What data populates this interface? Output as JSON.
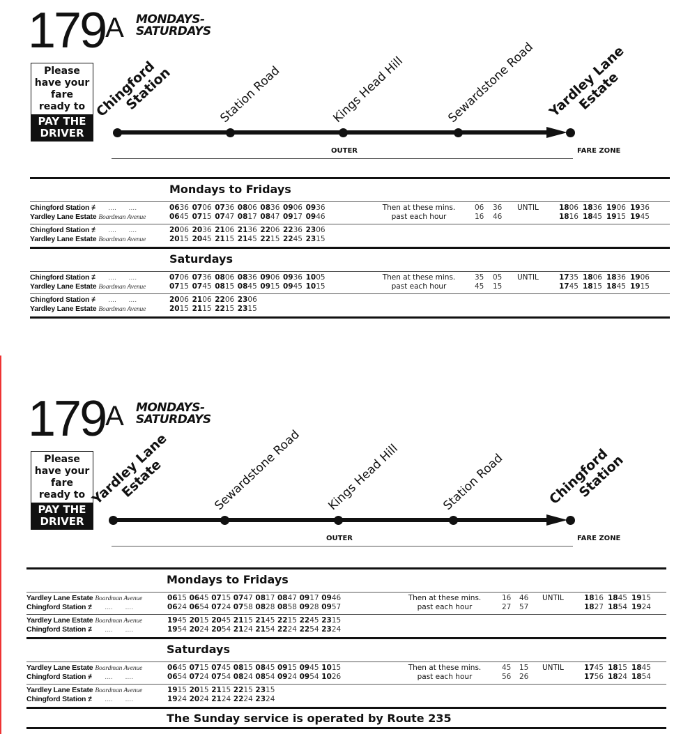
{
  "panels": [
    {
      "route_number": "179",
      "route_suffix": "A",
      "days_line1": "MONDAYS-",
      "days_line2": "SATURDAYS",
      "fare_box": {
        "line1": "Please",
        "line2": "have your",
        "line3": "fare",
        "line4": "ready to",
        "pay1": "PAY THE",
        "pay2": "DRIVER"
      },
      "stops": [
        {
          "line1": "Chingford",
          "line2": "Station",
          "terminus": true
        },
        {
          "line1": "Station Road"
        },
        {
          "line1": "Kings Head Hill"
        },
        {
          "line1": "Sewardstone Road"
        },
        {
          "line1": "Yardley Lane",
          "line2": "Estate",
          "terminus": true
        }
      ],
      "zone_label": "OUTER",
      "fare_zone_label": "FARE ZONE",
      "tables": [
        {
          "heading": "Mondays to Fridays",
          "blocks": [
            {
              "rows": [
                {
                  "stop": "Chingford Station",
                  "rail": true,
                  "times": [
                    "0636",
                    "0706",
                    "0736",
                    "0806",
                    "0836",
                    "0906",
                    "0936"
                  ]
                },
                {
                  "stop": "Yardley Lane Estate",
                  "note": "Boardman Avenue",
                  "times": [
                    "0645",
                    "0715",
                    "0747",
                    "0817",
                    "0847",
                    "0917",
                    "0946"
                  ]
                }
              ],
              "then": {
                "line1": "Then at these mins.",
                "line2": "past each hour",
                "mins": [
                  [
                    "06",
                    "36"
                  ],
                  [
                    "16",
                    "46"
                  ]
                ],
                "until": "UNTIL",
                "tail": [
                  [
                    "1806",
                    "1836",
                    "1906",
                    "1936"
                  ],
                  [
                    "1816",
                    "1845",
                    "1915",
                    "1945"
                  ]
                ]
              }
            },
            {
              "rows": [
                {
                  "stop": "Chingford Station",
                  "rail": true,
                  "times": [
                    "2006",
                    "2036",
                    "2106",
                    "2136",
                    "2206",
                    "2236",
                    "2306"
                  ]
                },
                {
                  "stop": "Yardley Lane Estate",
                  "note": "Boardman Avenue",
                  "times": [
                    "2015",
                    "2045",
                    "2115",
                    "2145",
                    "2215",
                    "2245",
                    "2315"
                  ]
                }
              ]
            }
          ]
        },
        {
          "heading": "Saturdays",
          "blocks": [
            {
              "rows": [
                {
                  "stop": "Chingford Station",
                  "rail": true,
                  "times": [
                    "0706",
                    "0736",
                    "0806",
                    "0836",
                    "0906",
                    "0936",
                    "1005"
                  ]
                },
                {
                  "stop": "Yardley Lane Estate",
                  "note": "Boardman Avenue",
                  "times": [
                    "0715",
                    "0745",
                    "0815",
                    "0845",
                    "0915",
                    "0945",
                    "1015"
                  ]
                }
              ],
              "then": {
                "line1": "Then at these mins.",
                "line2": "past each hour",
                "mins": [
                  [
                    "35",
                    "05"
                  ],
                  [
                    "45",
                    "15"
                  ]
                ],
                "until": "UNTIL",
                "tail": [
                  [
                    "1735",
                    "1806",
                    "1836",
                    "1906"
                  ],
                  [
                    "1745",
                    "1815",
                    "1845",
                    "1915"
                  ]
                ]
              }
            },
            {
              "rows": [
                {
                  "stop": "Chingford Station",
                  "rail": true,
                  "times": [
                    "2006",
                    "2106",
                    "2206",
                    "2306"
                  ]
                },
                {
                  "stop": "Yardley Lane Estate",
                  "note": "Boardman Avenue",
                  "times": [
                    "2015",
                    "2115",
                    "2215",
                    "2315"
                  ]
                }
              ]
            }
          ]
        }
      ]
    },
    {
      "route_number": "179",
      "route_suffix": "A",
      "days_line1": "MONDAYS-",
      "days_line2": "SATURDAYS",
      "fare_box": {
        "line1": "Please",
        "line2": "have your",
        "line3": "fare",
        "line4": "ready to",
        "pay1": "PAY THE",
        "pay2": "DRIVER"
      },
      "stops": [
        {
          "line1": "Yardley Lane",
          "line2": "Estate",
          "terminus": true
        },
        {
          "line1": "Sewardstone Road"
        },
        {
          "line1": "Kings Head Hill"
        },
        {
          "line1": "Station Road"
        },
        {
          "line1": "Chingford",
          "line2": "Station",
          "terminus": true
        }
      ],
      "zone_label": "OUTER",
      "fare_zone_label": "FARE ZONE",
      "tables": [
        {
          "heading": "Mondays to Fridays",
          "blocks": [
            {
              "rows": [
                {
                  "stop": "Yardley Lane Estate",
                  "note": "Boardman Avenue",
                  "times": [
                    "0615",
                    "0645",
                    "0715",
                    "0747",
                    "0817",
                    "0847",
                    "0917",
                    "0946"
                  ]
                },
                {
                  "stop": "Chingford Station",
                  "rail": true,
                  "times": [
                    "0624",
                    "0654",
                    "0724",
                    "0758",
                    "0828",
                    "0858",
                    "0928",
                    "0957"
                  ]
                }
              ],
              "then": {
                "line1": "Then at these mins.",
                "line2": "past each hour",
                "mins": [
                  [
                    "16",
                    "46"
                  ],
                  [
                    "27",
                    "57"
                  ]
                ],
                "until": "UNTIL",
                "tail": [
                  [
                    "1816",
                    "1845",
                    "1915"
                  ],
                  [
                    "1827",
                    "1854",
                    "1924"
                  ]
                ]
              }
            },
            {
              "rows": [
                {
                  "stop": "Yardley Lane Estate",
                  "note": "Boardman Avenue",
                  "times": [
                    "1945",
                    "2015",
                    "2045",
                    "2115",
                    "2145",
                    "2215",
                    "2245",
                    "2315"
                  ]
                },
                {
                  "stop": "Chingford Station",
                  "rail": true,
                  "times": [
                    "1954",
                    "2024",
                    "2054",
                    "2124",
                    "2154",
                    "2224",
                    "2254",
                    "2324"
                  ]
                }
              ]
            }
          ]
        },
        {
          "heading": "Saturdays",
          "blocks": [
            {
              "rows": [
                {
                  "stop": "Yardley Lane Estate",
                  "note": "Boardman Avenue",
                  "times": [
                    "0645",
                    "0715",
                    "0745",
                    "0815",
                    "0845",
                    "0915",
                    "0945",
                    "1015"
                  ]
                },
                {
                  "stop": "Chingford Station",
                  "rail": true,
                  "times": [
                    "0654",
                    "0724",
                    "0754",
                    "0824",
                    "0854",
                    "0924",
                    "0954",
                    "1026"
                  ]
                }
              ],
              "then": {
                "line1": "Then at these mins.",
                "line2": "past each hour",
                "mins": [
                  [
                    "45",
                    "15"
                  ],
                  [
                    "56",
                    "26"
                  ]
                ],
                "until": "UNTIL",
                "tail": [
                  [
                    "1745",
                    "1815",
                    "1845"
                  ],
                  [
                    "1756",
                    "1824",
                    "1854"
                  ]
                ]
              }
            },
            {
              "rows": [
                {
                  "stop": "Yardley Lane Estate",
                  "note": "Boardman Avenue",
                  "times": [
                    "1915",
                    "2015",
                    "2115",
                    "2215",
                    "2315"
                  ]
                },
                {
                  "stop": "Chingford Station",
                  "rail": true,
                  "times": [
                    "1924",
                    "2024",
                    "2124",
                    "2224",
                    "2324"
                  ]
                }
              ]
            }
          ]
        }
      ],
      "footer": "The Sunday service is operated by Route 235"
    }
  ],
  "rail_icon": "british-rail-symbol",
  "rail_glyph": "≢",
  "dots": "....      ...."
}
